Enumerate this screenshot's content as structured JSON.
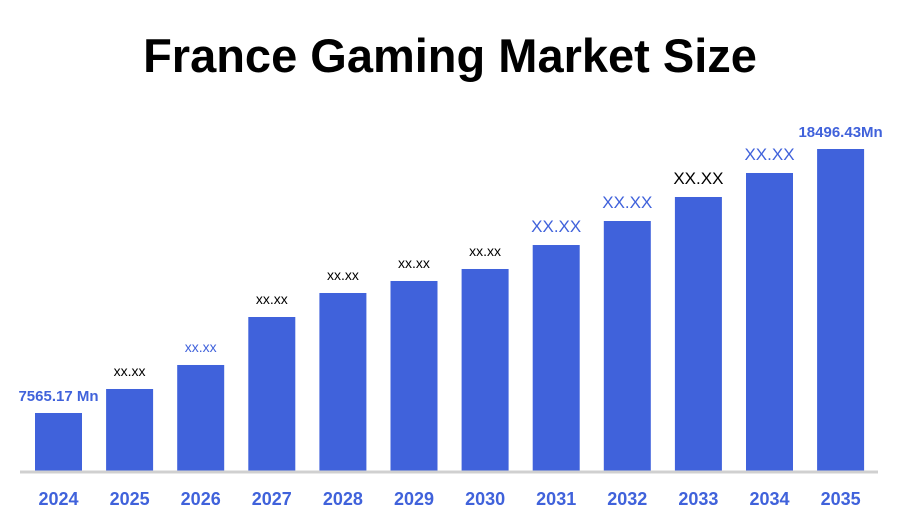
{
  "chart_data": {
    "type": "bar",
    "title": "France Gaming Market Size",
    "categories": [
      "2024",
      "2025",
      "2026",
      "2027",
      "2028",
      "2029",
      "2030",
      "2031",
      "2032",
      "2033",
      "2034",
      "2035"
    ],
    "values": [
      7565.17,
      8559,
      9553,
      11540,
      12534,
      13031,
      13528,
      14521,
      15515,
      16509,
      17503,
      18496.43
    ],
    "data_labels": [
      "7565.17 Mn",
      "xx.xx",
      "xx.xx",
      "xx.xx",
      "xx.xx",
      "xx.xx",
      "xx.xx",
      "XX.XX",
      "XX.XX",
      "XX.XX",
      "XX.XX",
      "18496.43Mn"
    ],
    "data_label_colors": [
      "#4062DB",
      "#000000",
      "#4062DB",
      "#000000",
      "#000000",
      "#000000",
      "#000000",
      "#4062DB",
      "#4062DB",
      "#000000",
      "#4062DB",
      "#4062DB"
    ],
    "ylim": [
      5122,
      18496.43
    ],
    "xlabel": "",
    "ylabel": "",
    "grid": false,
    "legend": "none",
    "bar_color": "#4062DB",
    "tick_label_color": "#4062DB",
    "axis_color": "#D0D0D0"
  }
}
